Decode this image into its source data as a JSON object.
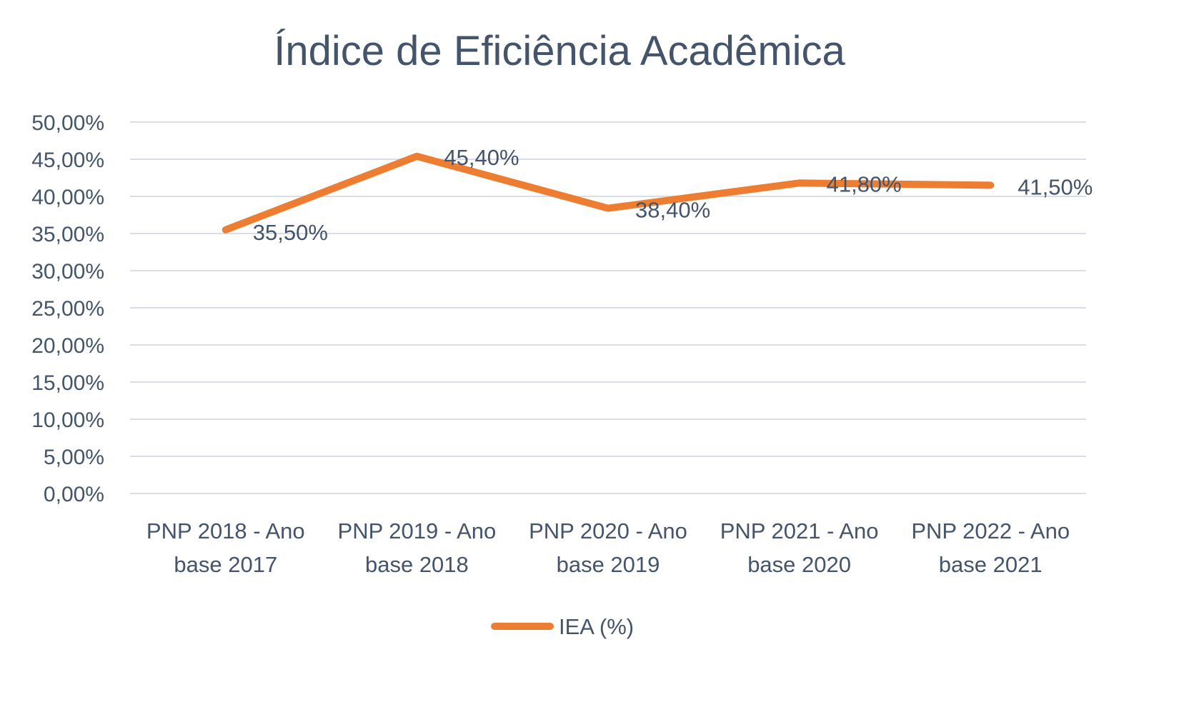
{
  "chart_data": {
    "type": "line",
    "title": "Índice de Eficiência Acadêmica",
    "xlabel": "",
    "ylabel": "",
    "categories": [
      [
        "PNP 2018 - Ano",
        "base 2017"
      ],
      [
        "PNP 2019 - Ano",
        "base 2018"
      ],
      [
        "PNP 2020 - Ano",
        "base 2019"
      ],
      [
        "PNP 2021 - Ano",
        "base 2020"
      ],
      [
        "PNP 2022 - Ano",
        "base 2021"
      ]
    ],
    "series": [
      {
        "name": "IEA (%)",
        "color": "#ED7D31",
        "values": [
          35.5,
          45.4,
          38.4,
          41.8,
          41.5
        ],
        "labels": [
          "35,50%",
          "45,40%",
          "38,40%",
          "41,80%",
          "41,50%"
        ]
      }
    ],
    "ylim": [
      0,
      50
    ],
    "yticks": [
      0,
      5,
      10,
      15,
      20,
      25,
      30,
      35,
      40,
      45,
      50
    ],
    "ytick_labels": [
      "0,00%",
      "5,00%",
      "10,00%",
      "15,00%",
      "20,00%",
      "25,00%",
      "30,00%",
      "35,00%",
      "40,00%",
      "45,00%",
      "50,00%"
    ],
    "grid": true,
    "gridColor": "#D9DEE6",
    "textColor": "#44546A",
    "legend": {
      "position": "bottom",
      "entries": [
        "IEA (%)"
      ]
    }
  }
}
